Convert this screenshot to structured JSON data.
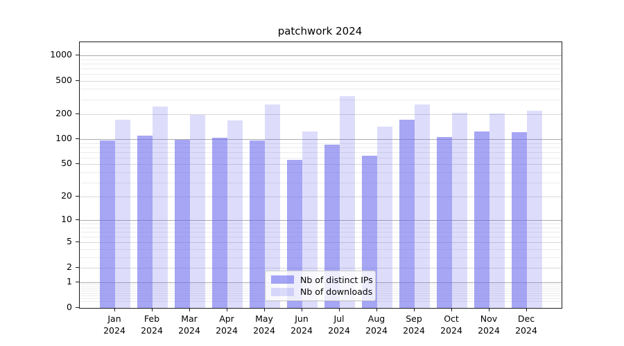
{
  "title": "patchwork 2024",
  "legend": {
    "items": [
      {
        "label": "Nb of distinct IPs",
        "series": "ips"
      },
      {
        "label": "Nb of downloads",
        "series": "downloads"
      }
    ]
  },
  "colors": {
    "bar_ips": "rgba(102,102,238,0.58)",
    "bar_downloads": "rgba(102,102,238,0.22)",
    "grid_major": "#ababab",
    "grid_mid": "#d8d8d8",
    "grid_minor": "#ebebeb",
    "frame": "#1a1a1a",
    "text": "#000000",
    "legend_bg": "rgba(255,255,255,0.8)",
    "legend_border": "#cccccc"
  },
  "chart_data": {
    "type": "bar",
    "title": "patchwork 2024",
    "categories": [
      "Jan 2024",
      "Feb 2024",
      "Mar 2024",
      "Apr 2024",
      "May 2024",
      "Jun 2024",
      "Jul 2024",
      "Aug 2024",
      "Sep 2024",
      "Oct 2024",
      "Nov 2024",
      "Dec 2024"
    ],
    "series": [
      {
        "name": "Nb of distinct IPs",
        "key": "ips",
        "values": [
          97,
          110,
          99,
          104,
          96,
          57,
          87,
          64,
          170,
          106,
          123,
          121
        ]
      },
      {
        "name": "Nb of downloads",
        "key": "downloads",
        "values": [
          170,
          248,
          197,
          168,
          261,
          125,
          324,
          142,
          261,
          208,
          202,
          220
        ]
      }
    ],
    "yscale": "log1p",
    "y_ticks": [
      0,
      1,
      2,
      5,
      10,
      20,
      50,
      100,
      200,
      500,
      1000
    ],
    "ylim": [
      0,
      1430
    ],
    "xlabel": "",
    "ylabel": "",
    "grid": "on",
    "legend_position": "lower center"
  }
}
